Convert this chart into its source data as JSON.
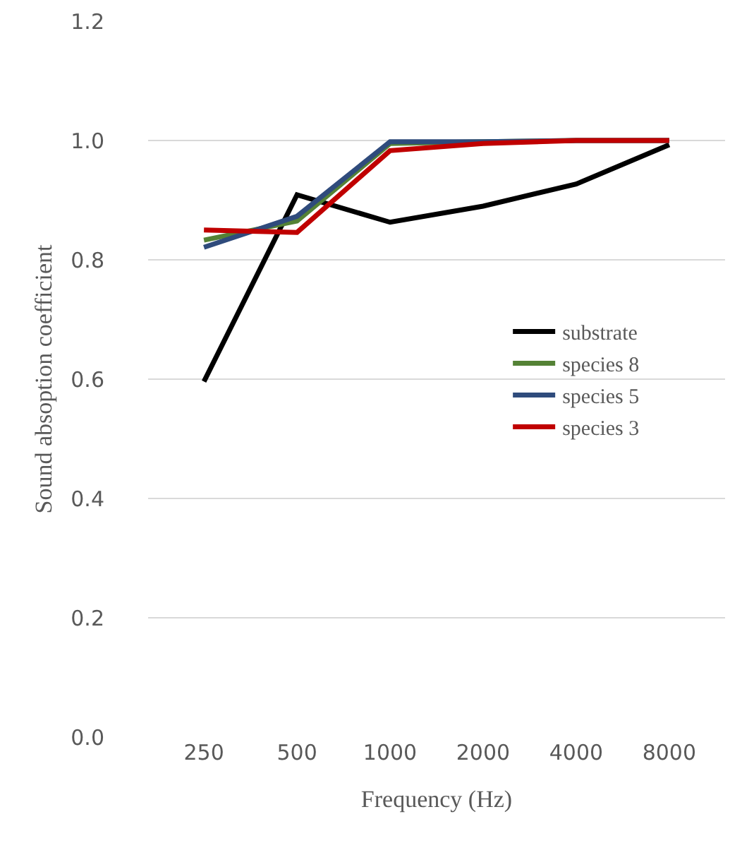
{
  "chart_data": {
    "type": "line",
    "xlabel": "Frequency (Hz)",
    "ylabel": "Sound absoption coefficient",
    "categories": [
      "250",
      "500",
      "1000",
      "2000",
      "4000",
      "8000"
    ],
    "series": [
      {
        "name": "substrate",
        "color": "#000000",
        "values": [
          0.596,
          0.909,
          0.863,
          0.89,
          0.927,
          0.993
        ]
      },
      {
        "name": "species 8",
        "color": "#548235",
        "values": [
          0.833,
          0.865,
          0.995,
          0.998,
          1.0,
          1.0
        ]
      },
      {
        "name": "species 5",
        "color": "#2f4b7c",
        "values": [
          0.821,
          0.873,
          0.998,
          0.998,
          1.0,
          1.0
        ]
      },
      {
        "name": "species 3",
        "color": "#c00000",
        "values": [
          0.85,
          0.846,
          0.983,
          0.995,
          1.0,
          1.0
        ]
      }
    ],
    "ylim": [
      0,
      1.2
    ],
    "yticks": [
      {
        "value": 0,
        "label": "0.0"
      },
      {
        "value": 0.2,
        "label": "0.2"
      },
      {
        "value": 0.4,
        "label": "0.4"
      },
      {
        "value": 0.6,
        "label": "0.6"
      },
      {
        "value": 0.8,
        "label": "0.8"
      },
      {
        "value": 1.0,
        "label": "1.0"
      },
      {
        "value": 1.2,
        "label": "1.2"
      }
    ],
    "grid": "y",
    "legend": "right",
    "marker": "none",
    "line_style": "solid"
  }
}
